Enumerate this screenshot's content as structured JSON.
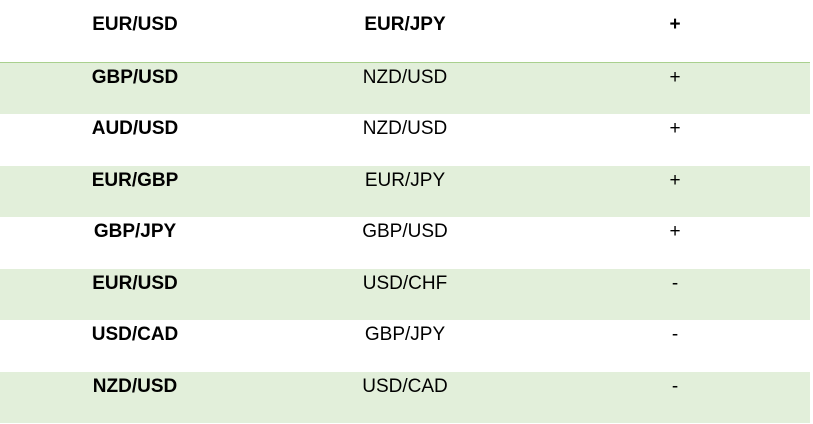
{
  "table": {
    "header": [
      "EUR/USD",
      "EUR/JPY",
      "+"
    ],
    "rows": [
      [
        "GBP/USD",
        "NZD/USD",
        "+"
      ],
      [
        "AUD/USD",
        "NZD/USD",
        "+"
      ],
      [
        "EUR/GBP",
        "EUR/JPY",
        "+"
      ],
      [
        "GBP/JPY",
        "GBP/USD",
        "+"
      ],
      [
        "EUR/USD",
        "USD/CHF",
        "-"
      ],
      [
        "USD/CAD",
        "GBP/JPY",
        "-"
      ],
      [
        "NZD/USD",
        "USD/CAD",
        "-"
      ]
    ]
  }
}
